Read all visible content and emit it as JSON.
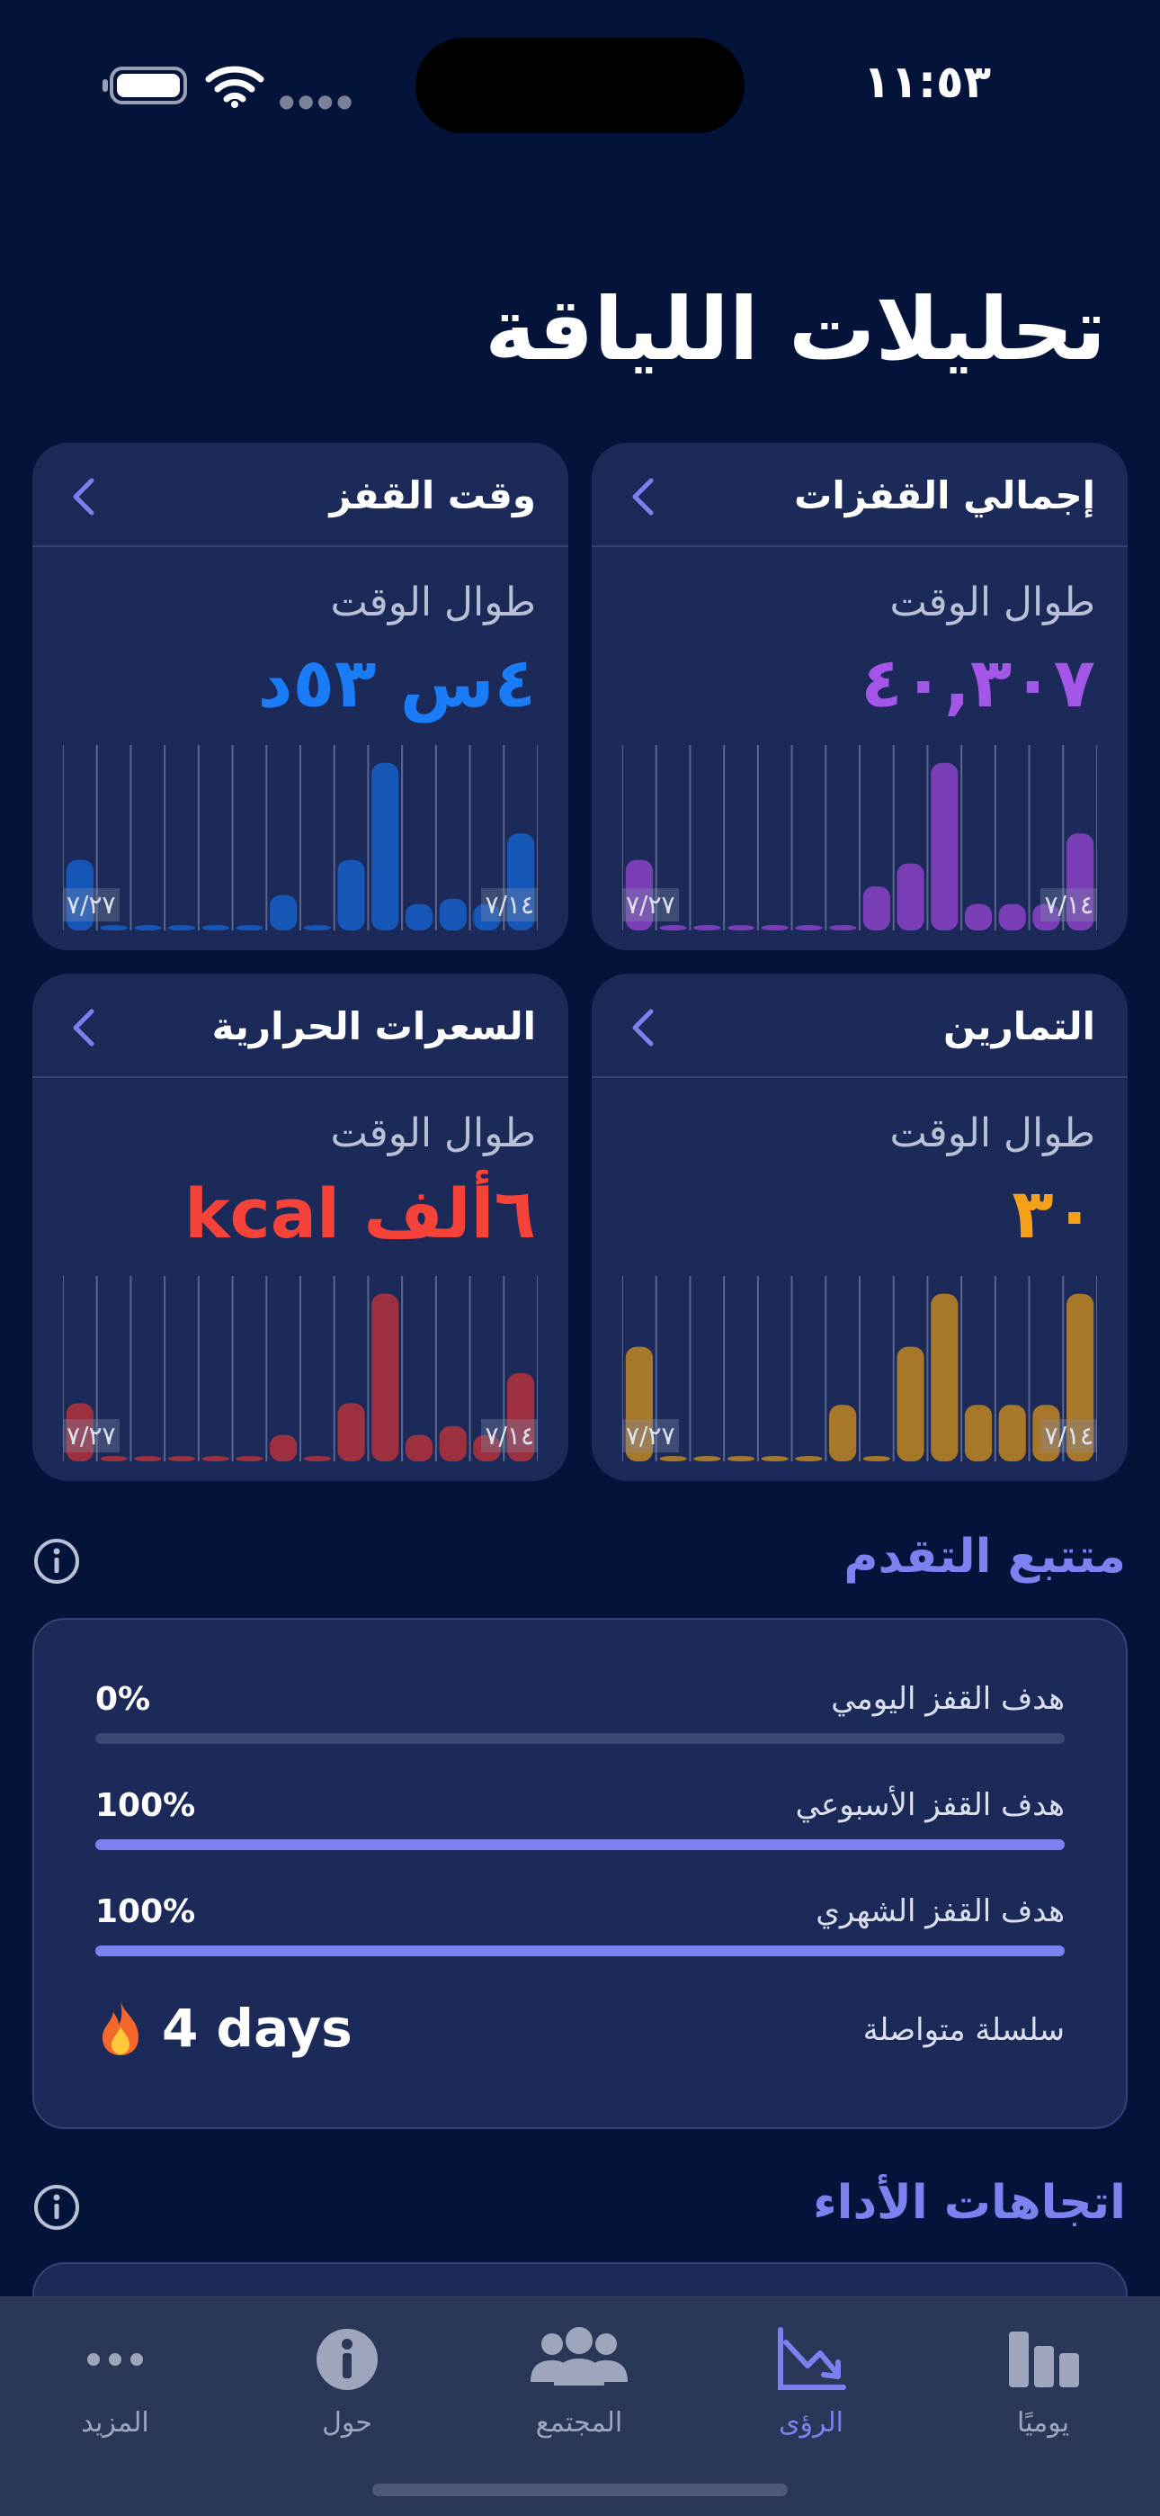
{
  "status_bar": {
    "time": "١١:٥٣"
  },
  "page_title": "تحليلات اللياقة",
  "cards": [
    {
      "title": "إجمالي القفزات",
      "subtitle": "طوال الوقت",
      "value": "٤٠,٣٠٧",
      "color": "#a356e8",
      "bar_color": "#7a3fb6"
    },
    {
      "title": "وقت القفز",
      "subtitle": "طوال الوقت",
      "value": "٤س ٥٣د",
      "color": "#1a7cf6",
      "bar_color": "#1757b8"
    },
    {
      "title": "التمارين",
      "subtitle": "طوال الوقت",
      "value": "٣٠",
      "color": "#f6a01a",
      "bar_color": "#a8782a"
    },
    {
      "title": "السعرات الحرارية",
      "subtitle": "طوال الوقت",
      "value": "٦ألف kcal",
      "color": "#f5433a",
      "bar_color": "#9d3140"
    }
  ],
  "chart_data": [
    {
      "type": "bar",
      "x_start_label": "٧/١٤",
      "x_end_label": "٧/٢٧",
      "values": [
        0.55,
        0.15,
        0.15,
        0.15,
        0.95,
        0.38,
        0.25,
        0.03,
        0.03,
        0.03,
        0.03,
        0.03,
        0.03,
        0.4
      ]
    },
    {
      "type": "bar",
      "x_start_label": "٧/١٤",
      "x_end_label": "٧/٢٧",
      "values": [
        0.55,
        0.15,
        0.18,
        0.15,
        0.95,
        0.4,
        0.03,
        0.2,
        0.03,
        0.03,
        0.03,
        0.03,
        0.03,
        0.4
      ]
    },
    {
      "type": "bar",
      "x_start_label": "٧/١٤",
      "x_end_label": "٧/٢٧",
      "values": [
        0.95,
        0.32,
        0.32,
        0.32,
        0.95,
        0.65,
        0.03,
        0.32,
        0.03,
        0.03,
        0.03,
        0.03,
        0.03,
        0.65
      ]
    },
    {
      "type": "bar",
      "x_start_label": "٧/١٤",
      "x_end_label": "٧/٢٧",
      "values": [
        0.5,
        0.15,
        0.2,
        0.15,
        0.95,
        0.33,
        0.03,
        0.15,
        0.03,
        0.03,
        0.03,
        0.03,
        0.03,
        0.33
      ]
    }
  ],
  "progress": {
    "title": "متتبع التقدم",
    "goals": [
      {
        "label": "هدف القفز اليومي",
        "percent_text": "0%",
        "fraction": 0.0
      },
      {
        "label": "هدف القفز الأسبوعي",
        "percent_text": "100%",
        "fraction": 1.0
      },
      {
        "label": "هدف القفز الشهري",
        "percent_text": "100%",
        "fraction": 1.0
      }
    ],
    "streak_label": "سلسلة متواصلة",
    "streak_value": "4 days",
    "accent": "#7b82f0"
  },
  "trends": {
    "title": "اتجاهات الأداء"
  },
  "tabs": [
    {
      "label": "يوميًا",
      "icon": "bars-icon"
    },
    {
      "label": "الرؤى",
      "icon": "insights-icon"
    },
    {
      "label": "المجتمع",
      "icon": "community-icon"
    },
    {
      "label": "حول",
      "icon": "info-icon"
    },
    {
      "label": "المزيد",
      "icon": "more-icon"
    }
  ]
}
